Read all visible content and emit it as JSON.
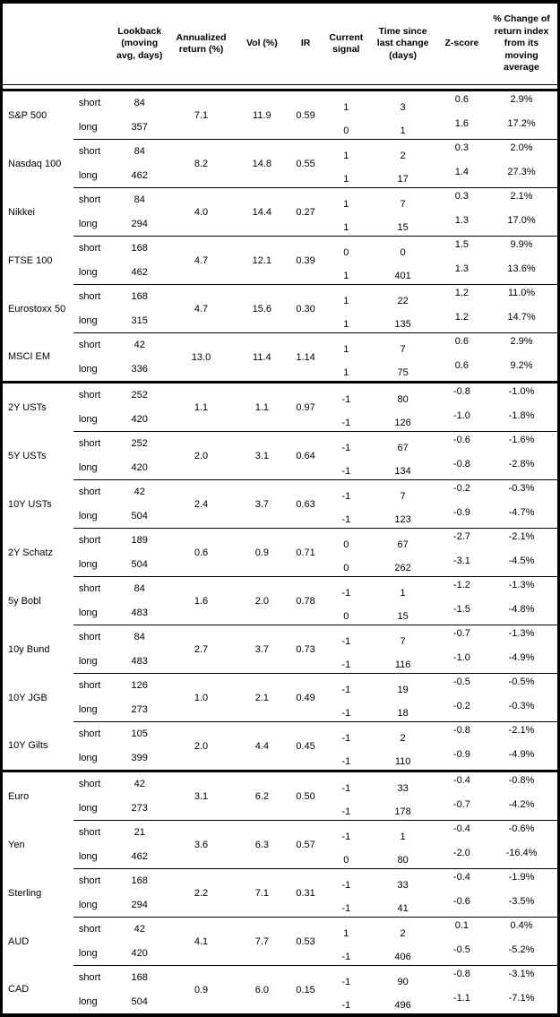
{
  "table": {
    "columns": [
      {
        "key": "instrument",
        "label": ""
      },
      {
        "key": "horizon",
        "label": ""
      },
      {
        "key": "lookback",
        "label": "Lookback (moving avg, days)"
      },
      {
        "key": "ann_return",
        "label": "Annualized return (%)"
      },
      {
        "key": "vol",
        "label": "Vol (%)"
      },
      {
        "key": "ir",
        "label": "IR"
      },
      {
        "key": "signal",
        "label": "Current signal"
      },
      {
        "key": "time_since",
        "label": "Time since last change (days)"
      },
      {
        "key": "zscore",
        "label": "Z-score"
      },
      {
        "key": "pct_change",
        "label": "% Change of return index from its moving average"
      }
    ],
    "groups": [
      {
        "name": "S&P 500",
        "ann_return": "7.1",
        "vol": "11.9",
        "ir": "0.59",
        "section_end": false,
        "rows": [
          {
            "horizon": "short",
            "lookback": "84",
            "signal": "1",
            "time_since": "3",
            "zscore": "0.6",
            "pct_change": "2.9%"
          },
          {
            "horizon": "long",
            "lookback": "357",
            "signal": "0",
            "time_since": "1",
            "zscore": "1.6",
            "pct_change": "17.2%"
          }
        ]
      },
      {
        "name": "Nasdaq 100",
        "ann_return": "8.2",
        "vol": "14.8",
        "ir": "0.55",
        "section_end": false,
        "rows": [
          {
            "horizon": "short",
            "lookback": "84",
            "signal": "1",
            "time_since": "2",
            "zscore": "0.3",
            "pct_change": "2.0%"
          },
          {
            "horizon": "long",
            "lookback": "462",
            "signal": "1",
            "time_since": "17",
            "zscore": "1.4",
            "pct_change": "27.3%"
          }
        ]
      },
      {
        "name": "Nikkei",
        "ann_return": "4.0",
        "vol": "14.4",
        "ir": "0.27",
        "section_end": false,
        "rows": [
          {
            "horizon": "short",
            "lookback": "84",
            "signal": "1",
            "time_since": "7",
            "zscore": "0.3",
            "pct_change": "2.1%"
          },
          {
            "horizon": "long",
            "lookback": "294",
            "signal": "1",
            "time_since": "15",
            "zscore": "1.3",
            "pct_change": "17.0%"
          }
        ]
      },
      {
        "name": "FTSE 100",
        "ann_return": "4.7",
        "vol": "12.1",
        "ir": "0.39",
        "section_end": false,
        "rows": [
          {
            "horizon": "short",
            "lookback": "168",
            "signal": "0",
            "time_since": "0",
            "zscore": "1.5",
            "pct_change": "9.9%"
          },
          {
            "horizon": "long",
            "lookback": "462",
            "signal": "1",
            "time_since": "401",
            "zscore": "1.3",
            "pct_change": "13.6%"
          }
        ]
      },
      {
        "name": "Eurostoxx 50",
        "ann_return": "4.7",
        "vol": "15.6",
        "ir": "0.30",
        "section_end": false,
        "rows": [
          {
            "horizon": "short",
            "lookback": "168",
            "signal": "1",
            "time_since": "22",
            "zscore": "1.2",
            "pct_change": "11.0%"
          },
          {
            "horizon": "long",
            "lookback": "315",
            "signal": "1",
            "time_since": "135",
            "zscore": "1.2",
            "pct_change": "14.7%"
          }
        ]
      },
      {
        "name": "MSCI EM",
        "ann_return": "13.0",
        "vol": "11.4",
        "ir": "1.14",
        "section_end": true,
        "rows": [
          {
            "horizon": "short",
            "lookback": "42",
            "signal": "1",
            "time_since": "7",
            "zscore": "0.6",
            "pct_change": "2.9%"
          },
          {
            "horizon": "long",
            "lookback": "336",
            "signal": "1",
            "time_since": "75",
            "zscore": "0.6",
            "pct_change": "9.2%"
          }
        ]
      },
      {
        "name": "2Y USTs",
        "ann_return": "1.1",
        "vol": "1.1",
        "ir": "0.97",
        "section_end": false,
        "rows": [
          {
            "horizon": "short",
            "lookback": "252",
            "signal": "-1",
            "time_since": "80",
            "zscore": "-0.8",
            "pct_change": "-1.0%"
          },
          {
            "horizon": "long",
            "lookback": "420",
            "signal": "-1",
            "time_since": "126",
            "zscore": "-1.0",
            "pct_change": "-1.8%"
          }
        ]
      },
      {
        "name": "5Y USTs",
        "ann_return": "2.0",
        "vol": "3.1",
        "ir": "0.64",
        "section_end": false,
        "rows": [
          {
            "horizon": "short",
            "lookback": "252",
            "signal": "-1",
            "time_since": "67",
            "zscore": "-0.6",
            "pct_change": "-1.6%"
          },
          {
            "horizon": "long",
            "lookback": "420",
            "signal": "-1",
            "time_since": "134",
            "zscore": "-0.8",
            "pct_change": "-2.8%"
          }
        ]
      },
      {
        "name": "10Y USTs",
        "ann_return": "2.4",
        "vol": "3.7",
        "ir": "0.63",
        "section_end": false,
        "rows": [
          {
            "horizon": "short",
            "lookback": "42",
            "signal": "-1",
            "time_since": "7",
            "zscore": "-0.2",
            "pct_change": "-0.3%"
          },
          {
            "horizon": "long",
            "lookback": "504",
            "signal": "-1",
            "time_since": "123",
            "zscore": "-0.9",
            "pct_change": "-4.7%"
          }
        ]
      },
      {
        "name": "2Y Schatz",
        "ann_return": "0.6",
        "vol": "0.9",
        "ir": "0.71",
        "section_end": false,
        "rows": [
          {
            "horizon": "short",
            "lookback": "189",
            "signal": "0",
            "time_since": "67",
            "zscore": "-2.7",
            "pct_change": "-2.1%"
          },
          {
            "horizon": "long",
            "lookback": "504",
            "signal": "0",
            "time_since": "262",
            "zscore": "-3.1",
            "pct_change": "-4.5%"
          }
        ]
      },
      {
        "name": "5y Bobl",
        "ann_return": "1.6",
        "vol": "2.0",
        "ir": "0.78",
        "section_end": false,
        "rows": [
          {
            "horizon": "short",
            "lookback": "84",
            "signal": "-1",
            "time_since": "1",
            "zscore": "-1.2",
            "pct_change": "-1.3%"
          },
          {
            "horizon": "long",
            "lookback": "483",
            "signal": "0",
            "time_since": "15",
            "zscore": "-1.5",
            "pct_change": "-4.8%"
          }
        ]
      },
      {
        "name": "10y Bund",
        "ann_return": "2.7",
        "vol": "3.7",
        "ir": "0.73",
        "section_end": false,
        "rows": [
          {
            "horizon": "short",
            "lookback": "84",
            "signal": "-1",
            "time_since": "7",
            "zscore": "-0.7",
            "pct_change": "-1.3%"
          },
          {
            "horizon": "long",
            "lookback": "483",
            "signal": "-1",
            "time_since": "116",
            "zscore": "-1.0",
            "pct_change": "-4.9%"
          }
        ]
      },
      {
        "name": "10Y JGB",
        "ann_return": "1.0",
        "vol": "2.1",
        "ir": "0.49",
        "section_end": false,
        "rows": [
          {
            "horizon": "short",
            "lookback": "126",
            "signal": "-1",
            "time_since": "19",
            "zscore": "-0.5",
            "pct_change": "-0.5%"
          },
          {
            "horizon": "long",
            "lookback": "273",
            "signal": "-1",
            "time_since": "18",
            "zscore": "-0.2",
            "pct_change": "-0.3%"
          }
        ]
      },
      {
        "name": "10Y Gilts",
        "ann_return": "2.0",
        "vol": "4.4",
        "ir": "0.45",
        "section_end": true,
        "rows": [
          {
            "horizon": "short",
            "lookback": "105",
            "signal": "-1",
            "time_since": "2",
            "zscore": "-0.8",
            "pct_change": "-2.1%"
          },
          {
            "horizon": "long",
            "lookback": "399",
            "signal": "-1",
            "time_since": "110",
            "zscore": "-0.9",
            "pct_change": "-4.9%"
          }
        ]
      },
      {
        "name": "Euro",
        "ann_return": "3.1",
        "vol": "6.2",
        "ir": "0.50",
        "section_end": false,
        "rows": [
          {
            "horizon": "short",
            "lookback": "42",
            "signal": "-1",
            "time_since": "33",
            "zscore": "-0.4",
            "pct_change": "-0.8%"
          },
          {
            "horizon": "long",
            "lookback": "273",
            "signal": "-1",
            "time_since": "178",
            "zscore": "-0.7",
            "pct_change": "-4.2%"
          }
        ]
      },
      {
        "name": "Yen",
        "ann_return": "3.6",
        "vol": "6.3",
        "ir": "0.57",
        "section_end": false,
        "rows": [
          {
            "horizon": "short",
            "lookback": "21",
            "signal": "-1",
            "time_since": "1",
            "zscore": "-0.4",
            "pct_change": "-0.6%"
          },
          {
            "horizon": "long",
            "lookback": "462",
            "signal": "0",
            "time_since": "80",
            "zscore": "-2.0",
            "pct_change": "-16.4%"
          }
        ]
      },
      {
        "name": "Sterling",
        "ann_return": "2.2",
        "vol": "7.1",
        "ir": "0.31",
        "section_end": false,
        "rows": [
          {
            "horizon": "short",
            "lookback": "168",
            "signal": "-1",
            "time_since": "33",
            "zscore": "-0.4",
            "pct_change": "-1.9%"
          },
          {
            "horizon": "long",
            "lookback": "294",
            "signal": "-1",
            "time_since": "41",
            "zscore": "-0.6",
            "pct_change": "-3.5%"
          }
        ]
      },
      {
        "name": "AUD",
        "ann_return": "4.1",
        "vol": "7.7",
        "ir": "0.53",
        "section_end": false,
        "rows": [
          {
            "horizon": "short",
            "lookback": "42",
            "signal": "1",
            "time_since": "2",
            "zscore": "0.1",
            "pct_change": "0.4%"
          },
          {
            "horizon": "long",
            "lookback": "420",
            "signal": "-1",
            "time_since": "406",
            "zscore": "-0.5",
            "pct_change": "-5.2%"
          }
        ]
      },
      {
        "name": "CAD",
        "ann_return": "0.9",
        "vol": "6.0",
        "ir": "0.15",
        "section_end": false,
        "rows": [
          {
            "horizon": "short",
            "lookback": "168",
            "signal": "-1",
            "time_since": "90",
            "zscore": "-0.8",
            "pct_change": "-3.1%"
          },
          {
            "horizon": "long",
            "lookback": "504",
            "signal": "-1",
            "time_since": "496",
            "zscore": "-1.1",
            "pct_change": "-7.1%"
          }
        ]
      }
    ]
  }
}
